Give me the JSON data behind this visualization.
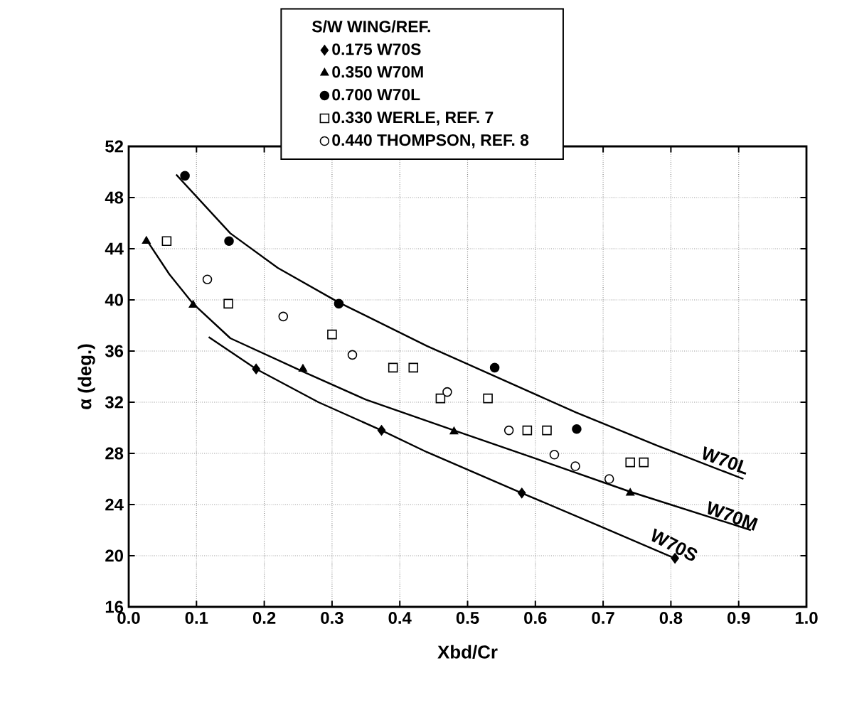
{
  "chart_data": {
    "type": "scatter",
    "xlabel": "Xbd/Cr",
    "ylabel": "α (deg.)",
    "legend_title": "S/W  WING/REF.",
    "xlim": [
      0,
      1
    ],
    "ylim": [
      16,
      52
    ],
    "xticks": [
      {
        "value": 0,
        "label": "0.0"
      },
      0.1,
      0.2,
      0.3,
      0.4,
      0.5,
      0.6,
      0.7,
      0.8,
      0.9,
      {
        "value": 1,
        "label": "1.0"
      }
    ],
    "yticks": [
      16,
      20,
      24,
      28,
      32,
      36,
      40,
      44,
      48,
      52
    ],
    "grid": true,
    "legend": "top",
    "series": [
      {
        "name": "0.175 W70S",
        "marker": "diamond",
        "color": "#000000",
        "x": [
          0.188,
          0.373,
          0.58,
          0.806
        ],
        "values": [
          34.6,
          29.8,
          24.9,
          19.8
        ]
      },
      {
        "name": "0.350 W70M",
        "marker": "triangle",
        "color": "#000000",
        "x": [
          0.026,
          0.095,
          0.257,
          0.48,
          0.74
        ],
        "values": [
          44.6,
          39.6,
          34.6,
          29.7,
          24.9
        ]
      },
      {
        "name": "0.700 W70L",
        "marker": "circle",
        "color": "#000000",
        "x": [
          0.083,
          0.148,
          0.31,
          0.54,
          0.661
        ],
        "values": [
          49.7,
          44.6,
          39.7,
          34.7,
          29.9
        ]
      },
      {
        "name": "0.330 WERLE, REF. 7",
        "marker": "square",
        "color": "#ffffff",
        "x": [
          0.056,
          0.147,
          0.3,
          0.39,
          0.42,
          0.46,
          0.53,
          0.588,
          0.617,
          0.74,
          0.76
        ],
        "values": [
          44.6,
          39.7,
          37.3,
          34.7,
          34.7,
          32.3,
          32.3,
          29.8,
          29.8,
          27.3,
          27.3
        ]
      },
      {
        "name": "0.440 THOMPSON, REF. 8",
        "marker": "circle",
        "color": "#ffffff",
        "x": [
          0.116,
          0.228,
          0.33,
          0.47,
          0.561,
          0.628,
          0.659,
          0.709
        ],
        "values": [
          41.6,
          38.7,
          35.7,
          32.8,
          29.8,
          27.9,
          27.0,
          26.0
        ]
      },
      {
        "type": "line",
        "marker": "none",
        "color": "#000000",
        "x": [
          0.07,
          0.15,
          0.22,
          0.31,
          0.44,
          0.55,
          0.66,
          0.78,
          0.907
        ],
        "values": [
          49.8,
          45.2,
          42.5,
          39.8,
          36.4,
          33.8,
          31.2,
          28.6,
          26.0
        ]
      },
      {
        "type": "line",
        "marker": "none",
        "color": "#000000",
        "x": [
          0.025,
          0.06,
          0.095,
          0.15,
          0.257,
          0.35,
          0.48,
          0.6,
          0.74,
          0.918
        ],
        "values": [
          44.8,
          42.0,
          39.7,
          37.0,
          34.4,
          32.2,
          29.8,
          27.6,
          25.0,
          22.0
        ]
      },
      {
        "type": "line",
        "marker": "none",
        "color": "#000000",
        "x": [
          0.118,
          0.188,
          0.28,
          0.373,
          0.44,
          0.58,
          0.7,
          0.81
        ],
        "values": [
          37.1,
          34.6,
          32.0,
          29.8,
          28.1,
          24.9,
          22.2,
          19.7
        ]
      }
    ],
    "annotations": [
      "W70L",
      "W70M",
      "W70S"
    ]
  }
}
